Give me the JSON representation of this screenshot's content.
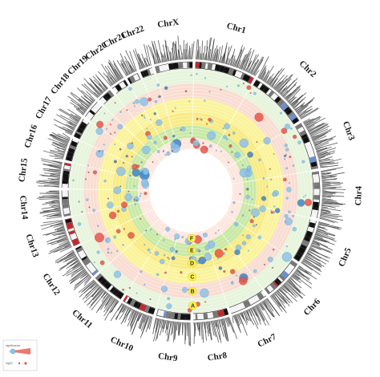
{
  "figure": {
    "chromosomes": [
      {
        "name": "Chr1"
      },
      {
        "name": "Chr2"
      },
      {
        "name": "Chr3"
      },
      {
        "name": "Chr4"
      },
      {
        "name": "Chr5"
      },
      {
        "name": "Chr6"
      },
      {
        "name": "Chr7"
      },
      {
        "name": "Chr8"
      },
      {
        "name": "Chr9"
      },
      {
        "name": "Chr10"
      },
      {
        "name": "Chr11"
      },
      {
        "name": "Chr12"
      },
      {
        "name": "Chr13"
      },
      {
        "name": "Chr14"
      },
      {
        "name": "Chr15"
      },
      {
        "name": "Chr16"
      },
      {
        "name": "Chr17"
      },
      {
        "name": "Chr18"
      },
      {
        "name": "Chr19"
      },
      {
        "name": "Chr20"
      },
      {
        "name": "Chr21"
      },
      {
        "name": "Chr22"
      },
      {
        "name": "ChrX"
      }
    ],
    "tracks": [
      {
        "letter": "A",
        "color": "#e7f4dc"
      },
      {
        "letter": "B",
        "color": "#f9ddd2"
      },
      {
        "letter": "C",
        "color": "#fbf39a"
      },
      {
        "letter": "D",
        "color": "#f8eb84"
      },
      {
        "letter": "E",
        "color": "#c9e9a6"
      },
      {
        "letter": "F",
        "color": "#fde6de"
      }
    ],
    "marker_colors": {
      "red": "#e8564a",
      "blue": "#3b87c9",
      "light_blue": "#8fc3e6"
    },
    "legend": {
      "label1": "significance",
      "label2": "log2C"
    }
  }
}
